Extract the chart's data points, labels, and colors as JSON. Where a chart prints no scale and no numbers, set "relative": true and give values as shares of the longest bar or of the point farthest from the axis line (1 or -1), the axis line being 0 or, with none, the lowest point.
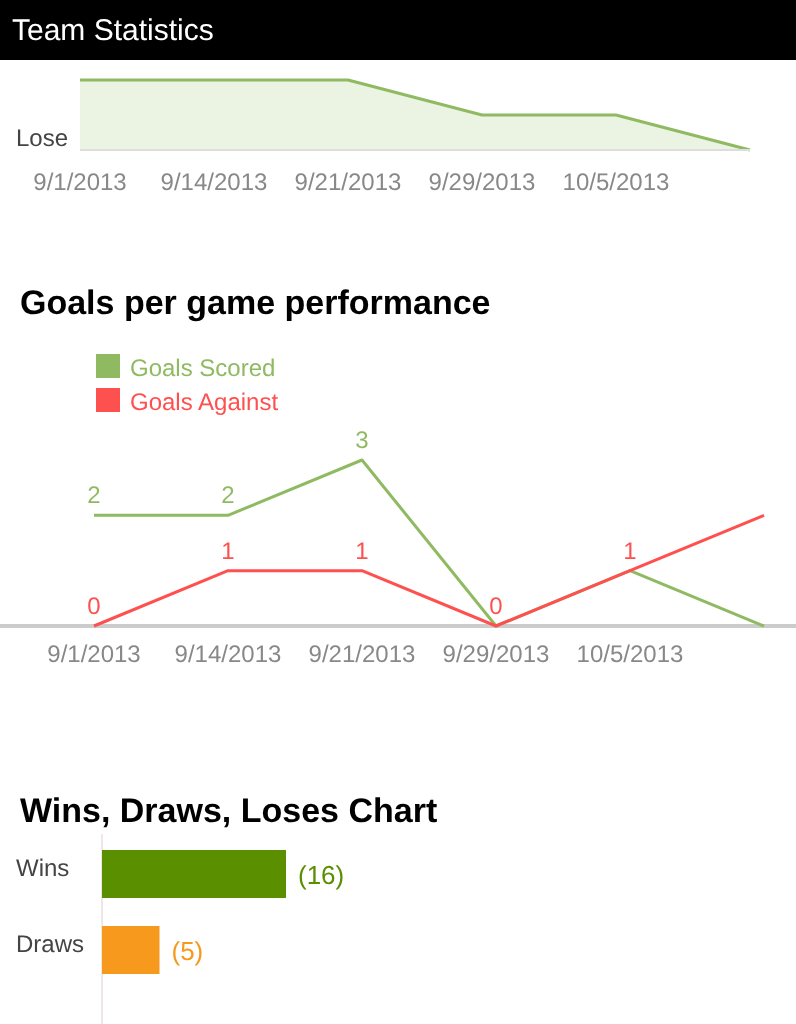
{
  "chart_data": [
    {
      "type": "area",
      "title": "Team Statistics",
      "categories": [
        "9/1/2013",
        "9/14/2013",
        "9/21/2013",
        "9/29/2013",
        "10/5/2013",
        null
      ],
      "relative": true,
      "series": [
        {
          "color": "#8fba62",
          "values": [
            1,
            1,
            1,
            0.5,
            0.5,
            0
          ]
        }
      ],
      "annotations": [
        "Lose"
      ]
    },
    {
      "type": "line",
      "title": "Goals per game performance",
      "categories": [
        "9/1/2013",
        "9/14/2013",
        "9/21/2013",
        "9/29/2013",
        "10/5/2013",
        null
      ],
      "legend": "top left",
      "series": [
        {
          "name": "Goals Scored",
          "color": "#8fba62",
          "values": [
            2,
            2,
            3,
            0,
            1,
            0
          ],
          "value_labels": [
            "2",
            "2",
            "3",
            null,
            null,
            null
          ]
        },
        {
          "name": "Goals Against",
          "color": "#ff5050",
          "values": [
            0,
            1,
            1,
            0,
            1,
            2
          ],
          "value_labels": [
            "0",
            "1",
            "1",
            "0",
            "1",
            null
          ]
        }
      ]
    },
    {
      "type": "bar",
      "orientation": "horizontal",
      "title": "Wins, Draws, Loses Chart",
      "categories": [
        "Wins",
        "Draws"
      ],
      "values": [
        16,
        5
      ],
      "colors": [
        "#5a9000",
        "#f7991c"
      ],
      "value_labels": [
        "(16)",
        "(5)"
      ]
    }
  ]
}
